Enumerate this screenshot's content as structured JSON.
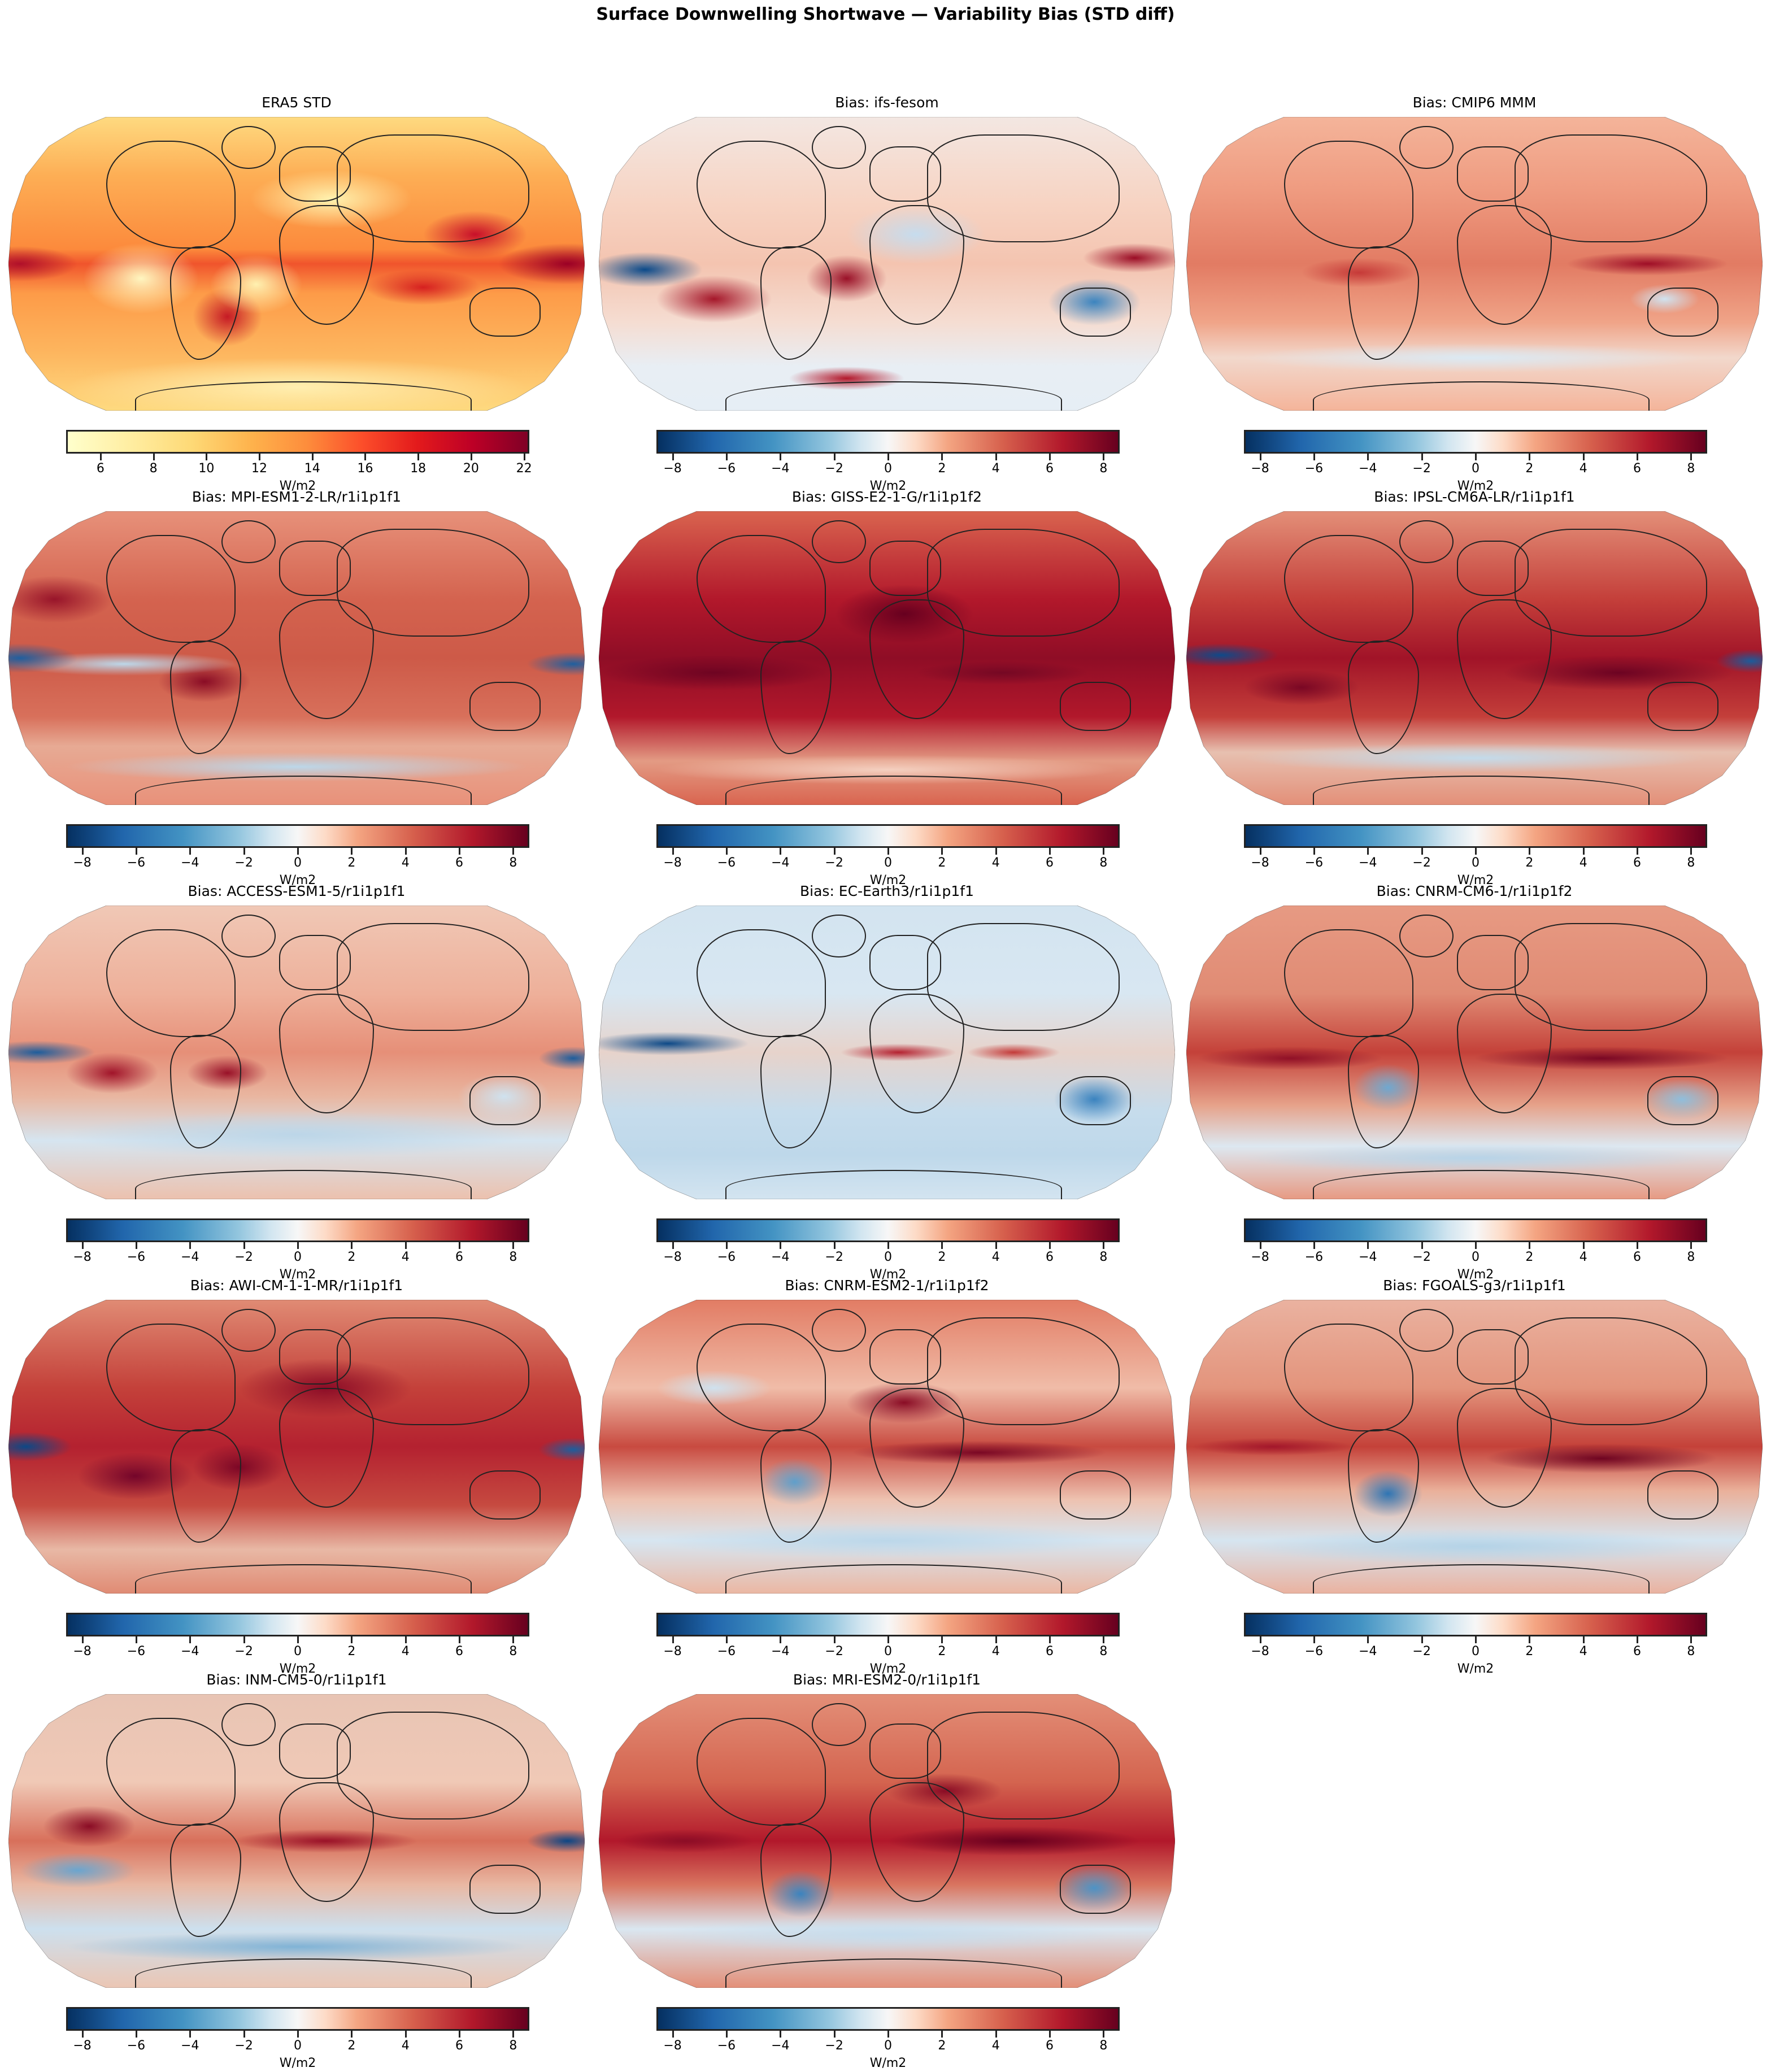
{
  "figure": {
    "suptitle": "Surface Downwelling Shortwave — Variability Bias (STD diff)"
  },
  "chart_data": {
    "type": "heatmap",
    "title": "Surface Downwelling Shortwave — Variability Bias (STD diff)",
    "projection": "Robinson (global maps with coastlines)",
    "layout": {
      "rows": 5,
      "cols": 3,
      "panels": 14
    },
    "panels": [
      {
        "title": "ERA5 STD",
        "colormap": "YlOrRd",
        "vmin": 4.7,
        "vmax": 22.2,
        "ticks": [
          6,
          8,
          10,
          12,
          14,
          16,
          18,
          20,
          22
        ],
        "units": "W/m2",
        "description": "Observed STD: high (~18-22) in ITCZ/west Pacific warm pool, SE China, S. Brazil; low (~5-8) over Sahara, Antarctica, subtropical SE Pacific/Atlantic"
      },
      {
        "title": "Bias: ifs-fesom",
        "colormap": "RdBu_r",
        "vmin": -8.6,
        "vmax": 8.6,
        "ticks": [
          -8,
          -6,
          -4,
          -2,
          0,
          2,
          4,
          6,
          8
        ],
        "units": "W/m2",
        "description": "Strong negative in central equatorial Pacific and Australia; positive in S. Atlantic, SE Pacific and Southern Ocean near Antarctica"
      },
      {
        "title": "Bias: CMIP6 MMM",
        "colormap": "RdBu_r",
        "vmin": -8.6,
        "vmax": 8.6,
        "ticks": [
          -8,
          -6,
          -4,
          -2,
          0,
          2,
          4,
          6,
          8
        ],
        "units": "W/m2",
        "description": "Mostly positive; strongest along equatorial Indian Ocean/Maritime continent; weak negatives in Southern Ocean"
      },
      {
        "title": "Bias: MPI-ESM1-2-LR/r1i1p1f1",
        "colormap": "RdBu_r",
        "vmin": -8.6,
        "vmax": 8.6,
        "ticks": [
          -8,
          -6,
          -4,
          -2,
          0,
          2,
          4,
          6,
          8
        ],
        "units": "W/m2",
        "description": "Widespread positive bias; negative band in equatorial Pacific and Southern Ocean"
      },
      {
        "title": "Bias: GISS-E2-1-G/r1i1p1f2",
        "colormap": "RdBu_r",
        "vmin": -8.6,
        "vmax": 8.6,
        "ticks": [
          -8,
          -6,
          -4,
          -2,
          0,
          2,
          4,
          6,
          8
        ],
        "units": "W/m2",
        "description": "Very strong positive bias nearly everywhere, saturated over Sahara and tropical oceans"
      },
      {
        "title": "Bias: IPSL-CM6A-LR/r1i1p1f1",
        "colormap": "RdBu_r",
        "vmin": -8.6,
        "vmax": 8.6,
        "ticks": [
          -8,
          -6,
          -4,
          -2,
          0,
          2,
          4,
          6,
          8
        ],
        "units": "W/m2",
        "description": "Strong negative on equatorial Pacific; strong positive in tropics and subtropics"
      },
      {
        "title": "Bias: ACCESS-ESM1-5/r1i1p1f1",
        "colormap": "RdBu_r",
        "vmin": -8.6,
        "vmax": 8.6,
        "ticks": [
          -8,
          -6,
          -4,
          -2,
          0,
          2,
          4,
          6,
          8
        ],
        "units": "W/m2",
        "description": "Negative equatorial Pacific; positive S. Atlantic/SE Pacific stratocumulus regions; negative Southern Ocean"
      },
      {
        "title": "Bias: EC-Earth3/r1i1p1f1",
        "colormap": "RdBu_r",
        "vmin": -8.6,
        "vmax": 8.6,
        "ticks": [
          -8,
          -6,
          -4,
          -2,
          0,
          2,
          4,
          6,
          8
        ],
        "units": "W/m2",
        "description": "Mostly negative; strong negative equatorial Pacific and Australia; positive band in equatorial Atlantic/Indian Ocean"
      },
      {
        "title": "Bias: CNRM-CM6-1/r1i1p1f2",
        "colormap": "RdBu_r",
        "vmin": -8.6,
        "vmax": 8.6,
        "ticks": [
          -8,
          -6,
          -4,
          -2,
          0,
          2,
          4,
          6,
          8
        ],
        "units": "W/m2",
        "description": "Positive tropics especially equatorial band; negative S. America, Australia and Southern Ocean"
      },
      {
        "title": "Bias: AWI-CM-1-1-MR/r1i1p1f1",
        "colormap": "RdBu_r",
        "vmin": -8.6,
        "vmax": 8.6,
        "ticks": [
          -8,
          -6,
          -4,
          -2,
          0,
          2,
          4,
          6,
          8
        ],
        "units": "W/m2",
        "description": "Strong positive widespread; negative equatorial Pacific"
      },
      {
        "title": "Bias: CNRM-ESM2-1/r1i1p1f2",
        "colormap": "RdBu_r",
        "vmin": -8.6,
        "vmax": 8.6,
        "ticks": [
          -8,
          -6,
          -4,
          -2,
          0,
          2,
          4,
          6,
          8
        ],
        "units": "W/m2",
        "description": "Positive equatorial band and Africa; negative S. America, Southern Ocean"
      },
      {
        "title": "Bias: FGOALS-g3/r1i1p1f1",
        "colormap": "RdBu_r",
        "vmin": -8.6,
        "vmax": 8.6,
        "ticks": [
          -8,
          -6,
          -4,
          -2,
          0,
          2,
          4,
          6,
          8
        ],
        "units": "W/m2",
        "description": "Positive tropics; strong positive Indian Ocean/Maritime continent; negative S. America and Southern Ocean"
      },
      {
        "title": "Bias: INM-CM5-0/r1i1p1f1",
        "colormap": "RdBu_r",
        "vmin": -8.6,
        "vmax": 8.6,
        "ticks": [
          -8,
          -6,
          -4,
          -2,
          0,
          2,
          4,
          6,
          8
        ],
        "units": "W/m2",
        "description": "Mixed; negative equatorial Pacific edges and Southern Ocean; positive tropical Atlantic/Indian"
      },
      {
        "title": "Bias: MRI-ESM2-0/r1i1p1f1",
        "colormap": "RdBu_r",
        "vmin": -8.6,
        "vmax": 8.6,
        "ticks": [
          -8,
          -6,
          -4,
          -2,
          0,
          2,
          4,
          6,
          8
        ],
        "units": "W/m2",
        "description": "Strong positive tropics and Sahara/Arabia; negative Australia, S. America, Southern Ocean"
      }
    ]
  },
  "panels": [
    {
      "title": "ERA5 STD",
      "cbar_label": "W/m2",
      "ticks": [
        "6",
        "8",
        "10",
        "12",
        "14",
        "16",
        "18",
        "20",
        "22"
      ]
    },
    {
      "title": "Bias: ifs-fesom",
      "cbar_label": "W/m2",
      "ticks": [
        "−8",
        "−6",
        "−4",
        "−2",
        "0",
        "2",
        "4",
        "6",
        "8"
      ]
    },
    {
      "title": "Bias: CMIP6 MMM",
      "cbar_label": "W/m2",
      "ticks": [
        "−8",
        "−6",
        "−4",
        "−2",
        "0",
        "2",
        "4",
        "6",
        "8"
      ]
    },
    {
      "title": "Bias: MPI-ESM1-2-LR/r1i1p1f1",
      "cbar_label": "W/m2",
      "ticks": [
        "−8",
        "−6",
        "−4",
        "−2",
        "0",
        "2",
        "4",
        "6",
        "8"
      ]
    },
    {
      "title": "Bias: GISS-E2-1-G/r1i1p1f2",
      "cbar_label": "W/m2",
      "ticks": [
        "−8",
        "−6",
        "−4",
        "−2",
        "0",
        "2",
        "4",
        "6",
        "8"
      ]
    },
    {
      "title": "Bias: IPSL-CM6A-LR/r1i1p1f1",
      "cbar_label": "W/m2",
      "ticks": [
        "−8",
        "−6",
        "−4",
        "−2",
        "0",
        "2",
        "4",
        "6",
        "8"
      ]
    },
    {
      "title": "Bias: ACCESS-ESM1-5/r1i1p1f1",
      "cbar_label": "W/m2",
      "ticks": [
        "−8",
        "−6",
        "−4",
        "−2",
        "0",
        "2",
        "4",
        "6",
        "8"
      ]
    },
    {
      "title": "Bias: EC-Earth3/r1i1p1f1",
      "cbar_label": "W/m2",
      "ticks": [
        "−8",
        "−6",
        "−4",
        "−2",
        "0",
        "2",
        "4",
        "6",
        "8"
      ]
    },
    {
      "title": "Bias: CNRM-CM6-1/r1i1p1f2",
      "cbar_label": "W/m2",
      "ticks": [
        "−8",
        "−6",
        "−4",
        "−2",
        "0",
        "2",
        "4",
        "6",
        "8"
      ]
    },
    {
      "title": "Bias: AWI-CM-1-1-MR/r1i1p1f1",
      "cbar_label": "W/m2",
      "ticks": [
        "−8",
        "−6",
        "−4",
        "−2",
        "0",
        "2",
        "4",
        "6",
        "8"
      ]
    },
    {
      "title": "Bias: CNRM-ESM2-1/r1i1p1f2",
      "cbar_label": "W/m2",
      "ticks": [
        "−8",
        "−6",
        "−4",
        "−2",
        "0",
        "2",
        "4",
        "6",
        "8"
      ]
    },
    {
      "title": "Bias: FGOALS-g3/r1i1p1f1",
      "cbar_label": "W/m2",
      "ticks": [
        "−8",
        "−6",
        "−4",
        "−2",
        "0",
        "2",
        "4",
        "6",
        "8"
      ]
    },
    {
      "title": "Bias: INM-CM5-0/r1i1p1f1",
      "cbar_label": "W/m2",
      "ticks": [
        "−8",
        "−6",
        "−4",
        "−2",
        "0",
        "2",
        "4",
        "6",
        "8"
      ]
    },
    {
      "title": "Bias: MRI-ESM2-0/r1i1p1f1",
      "cbar_label": "W/m2",
      "ticks": [
        "−8",
        "−6",
        "−4",
        "−2",
        "0",
        "2",
        "4",
        "6",
        "8"
      ]
    }
  ],
  "colors": {
    "seq_low": "#ffffcc",
    "seq_high": "#800026",
    "div_neg": "#053061",
    "div_mid": "#f7f7f7",
    "div_pos": "#67001f"
  }
}
